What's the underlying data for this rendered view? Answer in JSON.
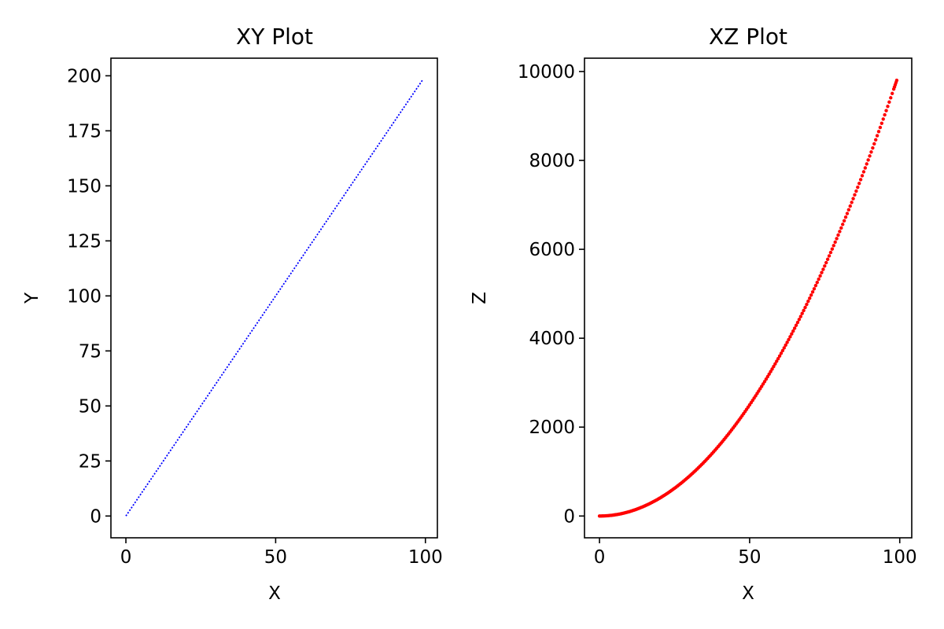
{
  "chart_data": [
    {
      "type": "line",
      "title": "XY Plot",
      "xlabel": "X",
      "ylabel": "Y",
      "xlim": [
        -5,
        104
      ],
      "ylim": [
        -9.9,
        208
      ],
      "xticks": [
        0,
        50,
        100
      ],
      "yticks": [
        0,
        25,
        50,
        75,
        100,
        125,
        150,
        175,
        200
      ],
      "grid": false,
      "line_style": "dotted",
      "series": [
        {
          "color": "#0000ff",
          "x": [
            0,
            99
          ],
          "y": [
            0,
            198
          ]
        }
      ]
    },
    {
      "type": "scatter",
      "title": "XZ Plot",
      "xlabel": "X",
      "ylabel": "Z",
      "xlim": [
        -5,
        104
      ],
      "ylim": [
        -490,
        10300
      ],
      "xticks": [
        0,
        50,
        100
      ],
      "yticks": [
        0,
        2000,
        4000,
        6000,
        8000,
        10000
      ],
      "grid": false,
      "series": [
        {
          "color": "#ff0000",
          "x": [
            0,
            2,
            4,
            6,
            8,
            10,
            12,
            14,
            16,
            18,
            20,
            22,
            24,
            26,
            28,
            30,
            32,
            34,
            36,
            38,
            40,
            42,
            44,
            46,
            48,
            50,
            52,
            54,
            56,
            58,
            60,
            62,
            64,
            66,
            68,
            70,
            72,
            74,
            76,
            78,
            80,
            82,
            84,
            86,
            88,
            90,
            92,
            94,
            96,
            98,
            99
          ],
          "y": [
            0,
            4,
            16,
            36,
            64,
            100,
            144,
            196,
            256,
            324,
            400,
            484,
            576,
            676,
            784,
            900,
            1024,
            1156,
            1296,
            1444,
            1600,
            1764,
            1936,
            2116,
            2304,
            2500,
            2704,
            2916,
            3136,
            3364,
            3600,
            3844,
            4096,
            4356,
            4624,
            4900,
            5184,
            5476,
            5776,
            6084,
            6400,
            6724,
            7056,
            7396,
            7744,
            8100,
            8464,
            8836,
            9216,
            9604,
            9801
          ]
        }
      ]
    }
  ]
}
